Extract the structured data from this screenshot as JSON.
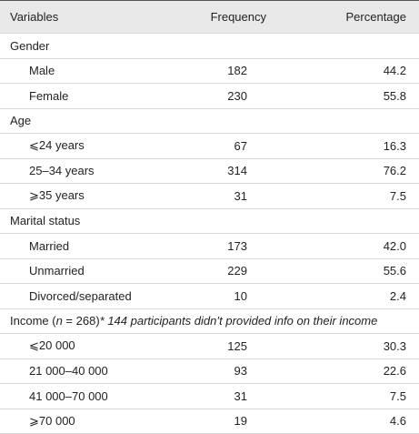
{
  "table": {
    "header": [
      "Variables",
      "Frequency",
      "Percentage"
    ],
    "groups": [
      {
        "label": [
          "Gender"
        ],
        "rows": [
          [
            "Male",
            "182",
            "44.2"
          ],
          [
            "Female",
            "230",
            "55.8"
          ]
        ]
      },
      {
        "label": [
          "Age"
        ],
        "rows": [
          [
            "⩽24 years",
            "67",
            "16.3"
          ],
          [
            "25–34 years",
            "314",
            "76.2"
          ],
          [
            "⩾35 years",
            "31",
            "7.5"
          ]
        ]
      },
      {
        "label": [
          "Marital status"
        ],
        "rows": [
          [
            "Married",
            "173",
            "42.0"
          ],
          [
            "Unmarried",
            "229",
            "55.6"
          ],
          [
            "Divorced/separated",
            "10",
            "2.4"
          ]
        ]
      },
      {
        "label": [
          "Income (",
          "n",
          " = 268)",
          "* 144 participants didn’t provided info on their income"
        ],
        "rows": [
          [
            "⩽20 000",
            "125",
            "30.3"
          ],
          [
            "21 000–40 000",
            "93",
            "22.6"
          ],
          [
            "41 000–70 000",
            "31",
            "7.5"
          ],
          [
            "⩾70 000",
            "19",
            "4.6"
          ]
        ]
      }
    ]
  }
}
